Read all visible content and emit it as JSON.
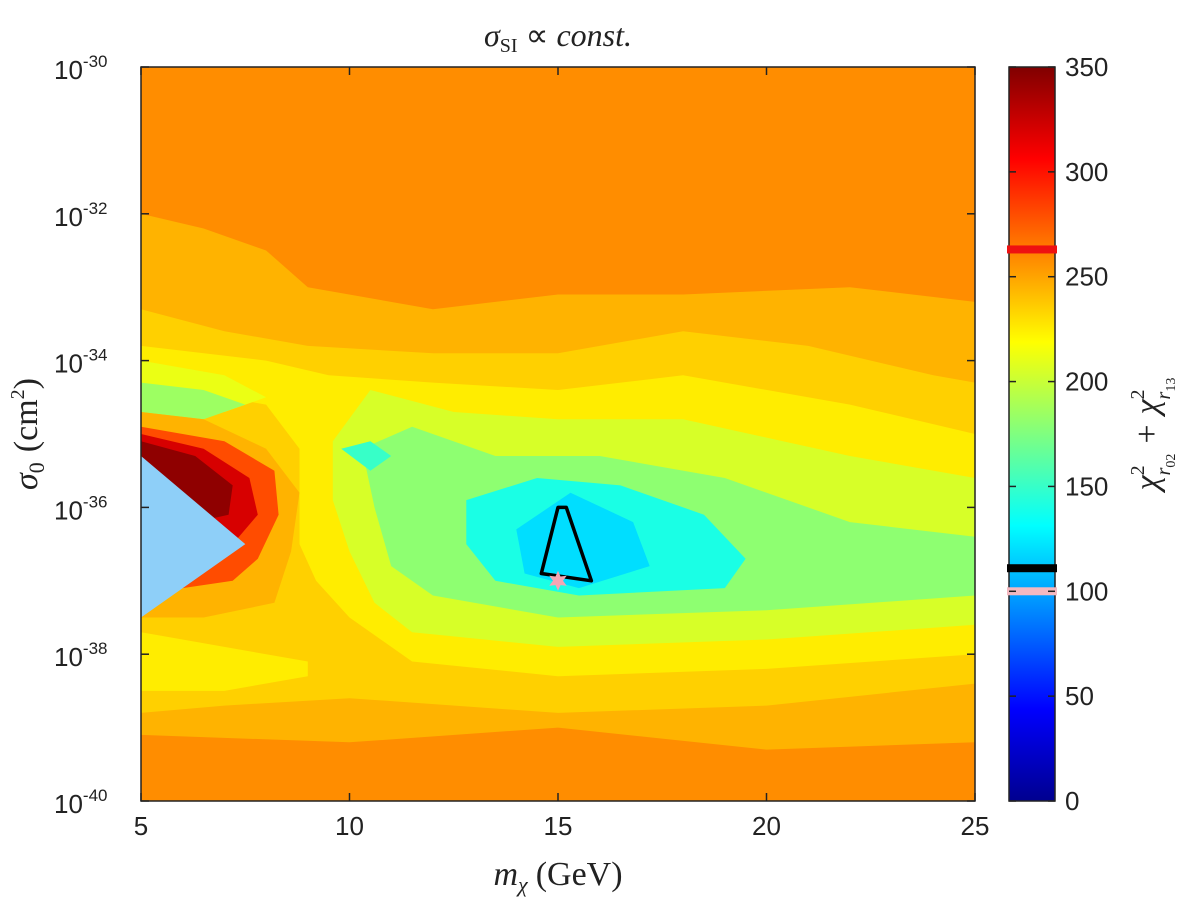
{
  "chart_data": {
    "type": "heatmap",
    "title": "σ_SI ∝ const.",
    "title_parts": {
      "sigma": "σ",
      "sub": "SI",
      "prop": "∝",
      "const": "const."
    },
    "xlabel": "m_χ (GeV)",
    "xlabel_parts": {
      "m": "m",
      "sub": "χ",
      "unit": "(GeV)"
    },
    "ylabel": "σ_0 (cm^2)",
    "ylabel_parts": {
      "sigma": "σ",
      "sub": "0",
      "unit_open": "(cm",
      "sup": "2",
      "unit_close": ")"
    },
    "x_range": [
      5,
      25
    ],
    "x_ticks": [
      5,
      10,
      15,
      20,
      25
    ],
    "x_tick_labels": [
      "5",
      "10",
      "15",
      "20",
      "25"
    ],
    "y_scale": "log",
    "y_range_exponent": [
      -40,
      -30
    ],
    "y_ticks_exponent": [
      -40,
      -38,
      -36,
      -34,
      -32,
      -30
    ],
    "y_tick_base": "10",
    "y_tick_exponents": [
      "-40",
      "-38",
      "-36",
      "-34",
      "-32",
      "-30"
    ],
    "colorbar": {
      "label": "χ²_r02 + χ²_r13",
      "label_parts": {
        "chi": "χ",
        "sup": "2",
        "sub1": "r",
        "subsub1": "02",
        "plus": "+",
        "sub2": "r",
        "subsub2": "13"
      },
      "range": [
        0,
        350
      ],
      "ticks": [
        0,
        50,
        100,
        150,
        200,
        250,
        300,
        350
      ],
      "tick_labels": [
        "0",
        "50",
        "100",
        "150",
        "200",
        "250",
        "300",
        "350"
      ],
      "colormap": "jet",
      "markers": [
        {
          "value": 263,
          "color": "#ee1111"
        },
        {
          "value": 111,
          "color": "#000000"
        },
        {
          "value": 100,
          "color": "#f4b8c0"
        }
      ]
    },
    "regions": [
      {
        "level": 258,
        "points": [
          [
            5,
            -30
          ],
          [
            25,
            -30
          ],
          [
            25,
            -40
          ],
          [
            5,
            -40
          ]
        ]
      },
      {
        "level": 245,
        "points": [
          [
            5,
            -32
          ],
          [
            6.5,
            -32.2
          ],
          [
            8,
            -32.5
          ],
          [
            9,
            -33
          ],
          [
            12,
            -33.3
          ],
          [
            15,
            -33.1
          ],
          [
            18,
            -33.1
          ],
          [
            22,
            -33
          ],
          [
            25,
            -33.2
          ],
          [
            25,
            -39.2
          ],
          [
            20,
            -39.3
          ],
          [
            15,
            -39
          ],
          [
            10,
            -39.2
          ],
          [
            5,
            -39.1
          ]
        ]
      },
      {
        "level": 235,
        "points": [
          [
            5,
            -33.3
          ],
          [
            7,
            -33.6
          ],
          [
            9,
            -33.8
          ],
          [
            12,
            -33.9
          ],
          [
            15,
            -33.9
          ],
          [
            18,
            -33.6
          ],
          [
            21,
            -33.8
          ],
          [
            24,
            -34.2
          ],
          [
            25,
            -34.3
          ],
          [
            25,
            -38.4
          ],
          [
            20,
            -38.7
          ],
          [
            15,
            -38.8
          ],
          [
            10,
            -38.6
          ],
          [
            7,
            -38.7
          ],
          [
            5,
            -38.8
          ]
        ]
      },
      {
        "level": 225,
        "points": [
          [
            5,
            -33.8
          ],
          [
            8,
            -34
          ],
          [
            9.5,
            -34.2
          ],
          [
            12,
            -34.3
          ],
          [
            15,
            -34.4
          ],
          [
            18,
            -34.2
          ],
          [
            22,
            -34.6
          ],
          [
            25,
            -35
          ],
          [
            25,
            -38
          ],
          [
            20,
            -38.2
          ],
          [
            15,
            -38.3
          ],
          [
            11.5,
            -38.1
          ],
          [
            10,
            -37.5
          ],
          [
            9.2,
            -37
          ],
          [
            8.8,
            -36.5
          ],
          [
            8.8,
            -35.2
          ],
          [
            8,
            -34.6
          ],
          [
            5,
            -34.3
          ]
        ]
      },
      {
        "level": 225,
        "points": [
          [
            5,
            -37.7
          ],
          [
            7,
            -37.9
          ],
          [
            9,
            -38.1
          ],
          [
            9,
            -38.3
          ],
          [
            7,
            -38.5
          ],
          [
            5,
            -38.5
          ]
        ]
      },
      {
        "level": 205,
        "points": [
          [
            9.6,
            -35.1
          ],
          [
            10.5,
            -34.4
          ],
          [
            12.5,
            -34.7
          ],
          [
            15,
            -34.8
          ],
          [
            18,
            -34.8
          ],
          [
            22,
            -35.3
          ],
          [
            25,
            -35.6
          ],
          [
            25,
            -37.6
          ],
          [
            20,
            -37.8
          ],
          [
            15,
            -37.9
          ],
          [
            11.5,
            -37.7
          ],
          [
            10.6,
            -37.3
          ],
          [
            10,
            -36.6
          ],
          [
            9.6,
            -35.9
          ]
        ]
      },
      {
        "level": 212,
        "points": [
          [
            5,
            -34
          ],
          [
            7,
            -34.2
          ],
          [
            8,
            -34.5
          ],
          [
            7,
            -34.7
          ],
          [
            5,
            -34.6
          ]
        ]
      },
      {
        "level": 180,
        "points": [
          [
            10.3,
            -35.2
          ],
          [
            11.5,
            -34.9
          ],
          [
            13.5,
            -35.3
          ],
          [
            16,
            -35.3
          ],
          [
            19,
            -35.6
          ],
          [
            22,
            -36.2
          ],
          [
            25,
            -36.4
          ],
          [
            25,
            -37.2
          ],
          [
            20,
            -37.4
          ],
          [
            15,
            -37.5
          ],
          [
            12,
            -37.2
          ],
          [
            11,
            -36.8
          ],
          [
            10.6,
            -36
          ]
        ]
      },
      {
        "level": 185,
        "points": [
          [
            5,
            -34.3
          ],
          [
            6.5,
            -34.4
          ],
          [
            7.5,
            -34.6
          ],
          [
            6.5,
            -34.8
          ],
          [
            5,
            -34.7
          ]
        ]
      },
      {
        "level": 140,
        "points": [
          [
            12.8,
            -35.9
          ],
          [
            14.5,
            -35.6
          ],
          [
            16.5,
            -35.7
          ],
          [
            18.5,
            -36.1
          ],
          [
            19.5,
            -36.7
          ],
          [
            19,
            -37.1
          ],
          [
            15.5,
            -37.2
          ],
          [
            13.5,
            -37
          ],
          [
            12.8,
            -36.5
          ]
        ]
      },
      {
        "level": 150,
        "points": [
          [
            9.8,
            -35.2
          ],
          [
            10.5,
            -35.1
          ],
          [
            11,
            -35.3
          ],
          [
            10.5,
            -35.5
          ]
        ]
      },
      {
        "level": 120,
        "points": [
          [
            14,
            -36.3
          ],
          [
            15.3,
            -35.8
          ],
          [
            16.8,
            -36.2
          ],
          [
            17.2,
            -36.8
          ],
          [
            15.5,
            -37.1
          ],
          [
            14.2,
            -36.9
          ]
        ]
      },
      {
        "level": 245,
        "points": [
          [
            5,
            -34.7
          ],
          [
            6.5,
            -34.8
          ],
          [
            8,
            -35.2
          ],
          [
            8.8,
            -35.8
          ],
          [
            8.6,
            -36.6
          ],
          [
            8.2,
            -37.3
          ],
          [
            6.5,
            -37.5
          ],
          [
            5,
            -37.5
          ]
        ]
      },
      {
        "level": 280,
        "points": [
          [
            5,
            -34.9
          ],
          [
            7,
            -35.1
          ],
          [
            8.2,
            -35.5
          ],
          [
            8.3,
            -36.1
          ],
          [
            7.8,
            -36.7
          ],
          [
            7.2,
            -37
          ],
          [
            6,
            -37.1
          ],
          [
            5,
            -37.1
          ]
        ]
      },
      {
        "level": 320,
        "points": [
          [
            5,
            -35
          ],
          [
            6.5,
            -35.2
          ],
          [
            7.6,
            -35.6
          ],
          [
            7.8,
            -36.1
          ],
          [
            7.2,
            -36.5
          ],
          [
            5,
            -36.5
          ]
        ]
      },
      {
        "level": 345,
        "points": [
          [
            5,
            -35.1
          ],
          [
            6.3,
            -35.3
          ],
          [
            7.2,
            -35.7
          ],
          [
            7.1,
            -36.1
          ],
          [
            6.3,
            -36.2
          ],
          [
            5,
            -36.2
          ]
        ]
      }
    ],
    "excluded_region": {
      "color": "#8ecff8",
      "points": [
        [
          5,
          -35.3
        ],
        [
          7.5,
          -36.5
        ],
        [
          5,
          -37.5
        ]
      ]
    },
    "contour": {
      "color": "#000000",
      "points": [
        [
          15,
          -36
        ],
        [
          14.6,
          -36.9
        ],
        [
          15.8,
          -37
        ],
        [
          15.2,
          -36
        ]
      ]
    },
    "best_fit": {
      "x": 15,
      "y_exponent": -37,
      "color": "#f4a6b4",
      "symbol": "star"
    }
  }
}
